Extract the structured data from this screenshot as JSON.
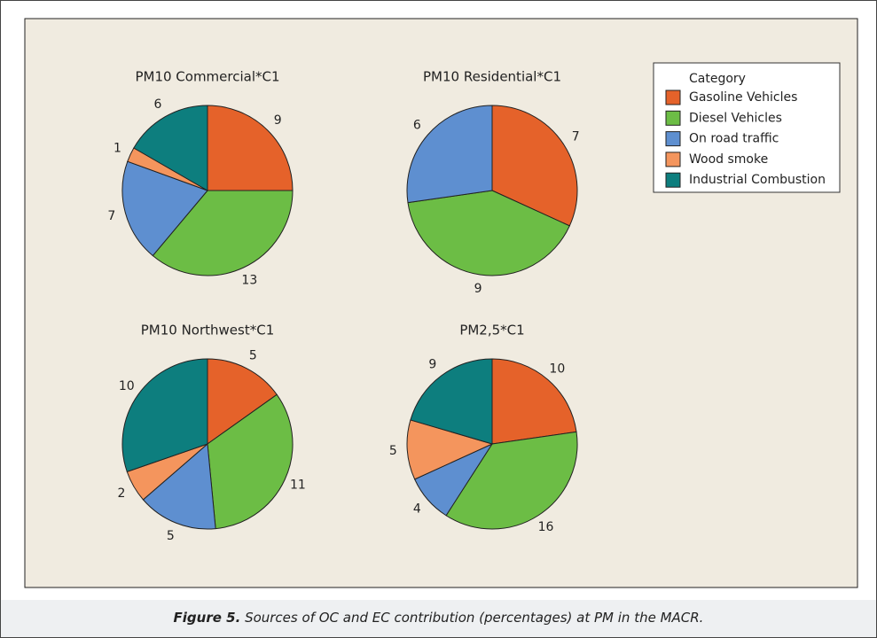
{
  "chart_data": [
    {
      "type": "pie",
      "title": "PM10 Commercial*C1",
      "categories": [
        "Gasoline Vehicles",
        "Diesel Vehicles",
        "On road traffic",
        "Wood smoke",
        "Industrial Combustion"
      ],
      "values": [
        9,
        13,
        7,
        1,
        6
      ],
      "colors": [
        "#e5622a",
        "#6cbd45",
        "#5e8fd0",
        "#f4955d",
        "#0d7e7e"
      ]
    },
    {
      "type": "pie",
      "title": "PM10 Residential*C1",
      "categories": [
        "Gasoline Vehicles",
        "Diesel Vehicles",
        "On road traffic",
        "Wood smoke",
        "Industrial Combustion"
      ],
      "values": [
        7,
        9,
        6,
        null,
        null
      ],
      "colors": [
        "#e5622a",
        "#6cbd45",
        "#5e8fd0",
        "#f4955d",
        "#0d7e7e"
      ]
    },
    {
      "type": "pie",
      "title": "PM10 Northwest*C1",
      "categories": [
        "Gasoline Vehicles",
        "Diesel Vehicles",
        "On road traffic",
        "Wood smoke",
        "Industrial Combustion"
      ],
      "values": [
        5,
        11,
        5,
        2,
        10
      ],
      "colors": [
        "#e5622a",
        "#6cbd45",
        "#5e8fd0",
        "#f4955d",
        "#0d7e7e"
      ]
    },
    {
      "type": "pie",
      "title": "PM2,5*C1",
      "categories": [
        "Gasoline Vehicles",
        "Diesel Vehicles",
        "On road traffic",
        "Wood smoke",
        "Industrial Combustion"
      ],
      "values": [
        10,
        16,
        4,
        5,
        9
      ],
      "colors": [
        "#e5622a",
        "#6cbd45",
        "#5e8fd0",
        "#f4955d",
        "#0d7e7e"
      ]
    }
  ],
  "legend_title": "Category",
  "caption": {
    "label": "Figure 5.",
    "text": "Sources of OC and EC contribution (percentages) at PM in the MACR."
  }
}
